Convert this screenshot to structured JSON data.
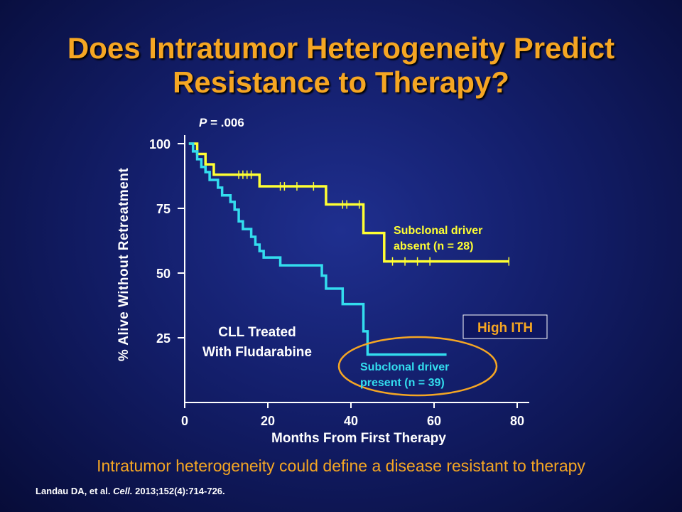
{
  "slide": {
    "title_line1": "Does Intratumor Heterogeneity Predict",
    "title_line2": "Resistance to Therapy?",
    "subtitle": "Intratumor heterogeneity could define a disease resistant to therapy",
    "citation_authors": "Landau DA, et al. ",
    "citation_journal": "Cell.",
    "citation_details": " 2013;152(4):714-726."
  },
  "chart_data": {
    "type": "line",
    "step": true,
    "xlabel": "Months From First Therapy",
    "ylabel": "% Alive Without Retreatment",
    "xlim": [
      0,
      80
    ],
    "ylim": [
      0,
      100
    ],
    "xticks": [
      0,
      20,
      40,
      60,
      80
    ],
    "yticks": [
      25,
      50,
      75,
      100
    ],
    "p_value_label": "P",
    "p_value_text": " = .006",
    "annotation_box": "High ITH",
    "annotation_treatment_line1": "CLL Treated",
    "annotation_treatment_line2": "With Fludarabine",
    "series": [
      {
        "name": "Subclonal driver absent (n = 28)",
        "label_line1": "Subclonal driver",
        "label_line2": "absent (n = 28)",
        "color": "#ffff33",
        "points": [
          [
            1,
            100
          ],
          [
            3,
            96
          ],
          [
            5,
            92
          ],
          [
            7,
            88
          ],
          [
            18,
            83.5
          ],
          [
            34,
            76.5
          ],
          [
            43,
            65.5
          ],
          [
            48,
            54.5
          ],
          [
            78,
            54.5
          ]
        ],
        "censors": [
          [
            13,
            88
          ],
          [
            14,
            88
          ],
          [
            15,
            88
          ],
          [
            16,
            88
          ],
          [
            23,
            83.5
          ],
          [
            24,
            83.5
          ],
          [
            27,
            83.5
          ],
          [
            31,
            83.5
          ],
          [
            38,
            76.5
          ],
          [
            39,
            76.5
          ],
          [
            42,
            76.5
          ],
          [
            50,
            54.5
          ],
          [
            53,
            54.5
          ],
          [
            56,
            54.5
          ],
          [
            59,
            54.5
          ],
          [
            78,
            54.5
          ]
        ]
      },
      {
        "name": "Subclonal driver present (n = 39)",
        "label_line1": "Subclonal driver",
        "label_line2": "present (n = 39)",
        "color": "#33ddee",
        "points": [
          [
            1,
            100
          ],
          [
            2,
            97
          ],
          [
            3,
            94
          ],
          [
            4,
            91
          ],
          [
            5,
            89
          ],
          [
            6,
            86
          ],
          [
            8,
            83
          ],
          [
            9,
            80
          ],
          [
            11,
            77.5
          ],
          [
            12,
            74.5
          ],
          [
            13,
            70
          ],
          [
            14,
            67
          ],
          [
            16,
            64
          ],
          [
            17,
            61
          ],
          [
            18,
            58.5
          ],
          [
            19,
            56
          ],
          [
            23,
            53
          ],
          [
            33,
            49
          ],
          [
            34,
            44
          ],
          [
            38,
            38
          ],
          [
            43,
            27.5
          ],
          [
            44,
            18.5
          ],
          [
            63,
            18.5
          ]
        ],
        "censors": []
      }
    ]
  }
}
